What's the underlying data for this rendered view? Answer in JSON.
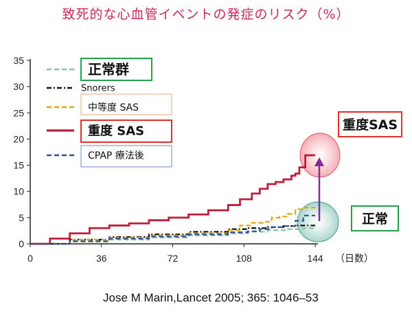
{
  "chart_data": {
    "type": "line",
    "title": "致死的な心血管イベントの発症のリスク（%）",
    "xlabel": "（日数）",
    "ylabel": "",
    "xlim": [
      0,
      144
    ],
    "ylim": [
      0,
      35
    ],
    "xticks": [
      0,
      36,
      72,
      108,
      144
    ],
    "yticks": [
      0,
      5,
      10,
      15,
      20,
      25,
      30,
      35
    ],
    "grid": false,
    "legend_position": "top-left",
    "series": [
      {
        "name": "正常群",
        "color": "#8fbf9f",
        "style": "dashed",
        "x": [
          0,
          20,
          40,
          60,
          80,
          100,
          110,
          120,
          130,
          138,
          144
        ],
        "y": [
          0,
          0.4,
          0.8,
          1.2,
          1.6,
          2.0,
          2.3,
          2.6,
          2.8,
          3.0,
          3.1
        ]
      },
      {
        "name": "Snorers",
        "color": "#111111",
        "style": "dashdot",
        "x": [
          0,
          20,
          40,
          60,
          80,
          100,
          110,
          120,
          128,
          134,
          144
        ],
        "y": [
          0,
          0.8,
          1.3,
          1.8,
          2.3,
          2.8,
          3.0,
          3.2,
          3.4,
          3.5,
          3.5
        ]
      },
      {
        "name": "中等度 SAS",
        "color": "#e0a800",
        "style": "dashed",
        "x": [
          0,
          20,
          40,
          60,
          80,
          100,
          106,
          112,
          118,
          122,
          126,
          130,
          134,
          138,
          144
        ],
        "y": [
          0,
          0.8,
          1.2,
          1.6,
          2.0,
          2.6,
          3.5,
          4.0,
          4.2,
          5.0,
          5.2,
          5.7,
          6.6,
          6.9,
          7.0
        ]
      },
      {
        "name": "重度 SAS",
        "color": "#be1e3c",
        "style": "solid",
        "x": [
          0,
          10,
          20,
          30,
          40,
          50,
          60,
          70,
          80,
          90,
          100,
          106,
          112,
          116,
          120,
          124,
          128,
          132,
          134,
          136,
          139,
          144
        ],
        "y": [
          0,
          1.0,
          2.0,
          3.0,
          3.5,
          3.9,
          4.5,
          5.0,
          5.6,
          6.4,
          7.4,
          8.5,
          9.6,
          10.5,
          11.4,
          11.8,
          12.3,
          13.0,
          13.4,
          14.6,
          16.9,
          16.9
        ]
      },
      {
        "name": "CPAP 療法後",
        "color": "#2c4e96",
        "style": "dashed",
        "x": [
          0,
          20,
          40,
          60,
          80,
          100,
          110,
          116,
          122,
          128,
          134,
          138,
          144
        ],
        "y": [
          0,
          0.5,
          1.0,
          1.4,
          1.8,
          2.2,
          2.4,
          2.8,
          3.2,
          3.4,
          4.4,
          5.4,
          5.4
        ]
      }
    ],
    "annotations": [
      {
        "label": "重度SAS"
      },
      {
        "label": "正常"
      }
    ],
    "citation": "Jose M Marin,Lancet 2005; 365: 1046–53"
  }
}
